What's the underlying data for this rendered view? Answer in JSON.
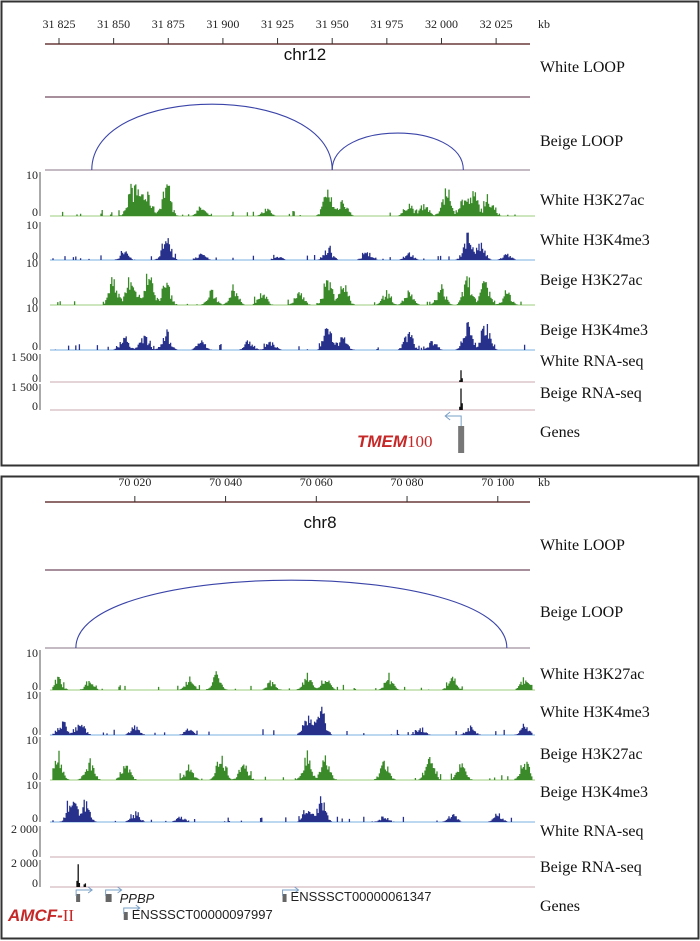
{
  "panels": [
    {
      "chromosome": "chr12",
      "axis_unit": "kb",
      "axis_ticks": [
        "31 825",
        "31 850",
        "31 875",
        "31 900",
        "31 925",
        "31 950",
        "31 975",
        "32 000",
        "32 025"
      ],
      "axis_tick_values": [
        31825,
        31850,
        31875,
        31900,
        31925,
        31950,
        31975,
        32000,
        32025
      ],
      "range_kb": [
        31818.6,
        32040.5
      ],
      "loops": {
        "white_label": "White LOOP",
        "beige_label": "Beige LOOP",
        "white_arcs": [],
        "beige_arcs": [
          [
            31840,
            31950
          ],
          [
            31950,
            32010
          ]
        ]
      },
      "tracks": [
        {
          "label": "White H3K27ac",
          "ymax": "10",
          "ymin": "0",
          "color": "#3a8a2a",
          "peaks": [
            [
              31858,
              6
            ],
            [
              31862,
              5
            ],
            [
              31866,
              4
            ],
            [
              31874,
              7
            ],
            [
              31890,
              2
            ],
            [
              31920,
              1.5
            ],
            [
              31948,
              6
            ],
            [
              31955,
              4
            ],
            [
              31985,
              3
            ],
            [
              31992,
              3
            ],
            [
              32002,
              6
            ],
            [
              32010,
              4
            ],
            [
              32015,
              5
            ],
            [
              32022,
              4
            ]
          ]
        },
        {
          "label": "White H3K4me3",
          "ymax": "10",
          "ymin": "0",
          "color": "#27318c",
          "peaks": [
            [
              31855,
              2
            ],
            [
              31874,
              6
            ],
            [
              31890,
              1.5
            ],
            [
              31925,
              1
            ],
            [
              31948,
              3
            ],
            [
              31966,
              2
            ],
            [
              31985,
              2
            ],
            [
              32012,
              7
            ],
            [
              32018,
              4
            ],
            [
              32030,
              1.5
            ]
          ]
        },
        {
          "label": "Beige H3K27ac",
          "ymax": "10",
          "ymin": "0",
          "color": "#3a8a2a",
          "peaks": [
            [
              31850,
              6
            ],
            [
              31858,
              7
            ],
            [
              31866,
              7
            ],
            [
              31874,
              5
            ],
            [
              31895,
              3
            ],
            [
              31905,
              4
            ],
            [
              31918,
              3
            ],
            [
              31935,
              3
            ],
            [
              31948,
              6
            ],
            [
              31955,
              5
            ],
            [
              31975,
              3
            ],
            [
              31985,
              3
            ],
            [
              32000,
              4
            ],
            [
              32012,
              6
            ],
            [
              32020,
              5
            ],
            [
              32030,
              3
            ]
          ]
        },
        {
          "label": "Beige H3K4me3",
          "ymax": "10",
          "ymin": "0",
          "color": "#27318c",
          "peaks": [
            [
              31855,
              3
            ],
            [
              31864,
              3
            ],
            [
              31874,
              4
            ],
            [
              31890,
              2
            ],
            [
              31912,
              2
            ],
            [
              31922,
              2
            ],
            [
              31948,
              5
            ],
            [
              31955,
              3
            ],
            [
              31985,
              4
            ],
            [
              31996,
              2
            ],
            [
              32012,
              7
            ],
            [
              32020,
              6
            ]
          ]
        },
        {
          "label": "White RNA-seq",
          "ymax": "1 500",
          "ymin": "0",
          "color": "#111111",
          "peaks": [
            [
              32009,
              5
            ]
          ]
        },
        {
          "label": "Beige RNA-seq",
          "ymax": "1 500",
          "ymin": "0",
          "color": "#111111",
          "peaks": [
            [
              32009,
              10
            ]
          ]
        }
      ],
      "genes_label": "Genes",
      "genes": [
        {
          "name_italic": "TMEM",
          "name_plain": "100",
          "start": 32009,
          "strand": "-"
        }
      ]
    },
    {
      "chromosome": "chr8",
      "axis_unit": "kb",
      "axis_ticks": [
        "70 020",
        "70 040",
        "70 060",
        "70 080",
        "70 100"
      ],
      "axis_tick_values": [
        70020,
        70040,
        70060,
        70080,
        70100
      ],
      "range_kb": [
        70000.2,
        70107.1
      ],
      "loops": {
        "white_label": "White LOOP",
        "beige_label": "Beige LOOP",
        "white_arcs": [],
        "beige_arcs": [
          [
            70007,
            70102
          ]
        ]
      },
      "tracks": [
        {
          "label": "White H3K27ac",
          "ymax": "10",
          "ymin": "0",
          "color": "#3a8a2a",
          "peaks": [
            [
              70003,
              3
            ],
            [
              70010,
              2
            ],
            [
              70032,
              3
            ],
            [
              70038,
              4
            ],
            [
              70050,
              2
            ],
            [
              70058,
              4
            ],
            [
              70062,
              3
            ],
            [
              70076,
              3
            ],
            [
              70090,
              3
            ],
            [
              70106,
              3
            ]
          ]
        },
        {
          "label": "White H3K4me3",
          "ymax": "10",
          "ymin": "0",
          "color": "#27318c",
          "peaks": [
            [
              70004,
              3
            ],
            [
              70008,
              3
            ],
            [
              70020,
              2
            ],
            [
              70032,
              1.5
            ],
            [
              70058,
              4
            ],
            [
              70061,
              6
            ],
            [
              70083,
              1.5
            ],
            [
              70094,
              2
            ],
            [
              70106,
              2
            ]
          ]
        },
        {
          "label": "Beige H3K27ac",
          "ymax": "10",
          "ymin": "0",
          "color": "#3a8a2a",
          "peaks": [
            [
              70003,
              6
            ],
            [
              70010,
              5
            ],
            [
              70018,
              4
            ],
            [
              70032,
              3
            ],
            [
              70039,
              6
            ],
            [
              70044,
              4
            ],
            [
              70058,
              6
            ],
            [
              70062,
              5
            ],
            [
              70075,
              4
            ],
            [
              70085,
              5
            ],
            [
              70092,
              4
            ],
            [
              70106,
              5
            ]
          ]
        },
        {
          "label": "Beige H3K4me3",
          "ymax": "10",
          "ymin": "0",
          "color": "#27318c",
          "peaks": [
            [
              70006,
              6
            ],
            [
              70009,
              5
            ],
            [
              70020,
              2
            ],
            [
              70030,
              1.5
            ],
            [
              70058,
              3
            ],
            [
              70061,
              6
            ],
            [
              70075,
              1.5
            ],
            [
              70090,
              2
            ],
            [
              70100,
              2
            ]
          ]
        },
        {
          "label": "White RNA-seq",
          "ymax": "2 000",
          "ymin": "0",
          "color": "#111111",
          "peaks": []
        },
        {
          "label": "Beige RNA-seq",
          "ymax": "2 000",
          "ymin": "0",
          "color": "#111111",
          "peaks": [
            [
              70007.5,
              10
            ],
            [
              70009,
              2
            ]
          ]
        }
      ],
      "genes_label": "Genes",
      "highlight_gene": {
        "name_italic": "AMCF-",
        "name_plain": "II"
      },
      "genes": [
        {
          "name": "",
          "start": 70007.5,
          "strand": "+"
        },
        {
          "name": "PPBP",
          "start": 70014,
          "strand": "+"
        },
        {
          "name": "ENSSSCT00000061347",
          "start": 70053,
          "strand": "+"
        },
        {
          "name": "ENSSSCT00000097997",
          "start": 70018,
          "strand": "+"
        }
      ]
    }
  ]
}
